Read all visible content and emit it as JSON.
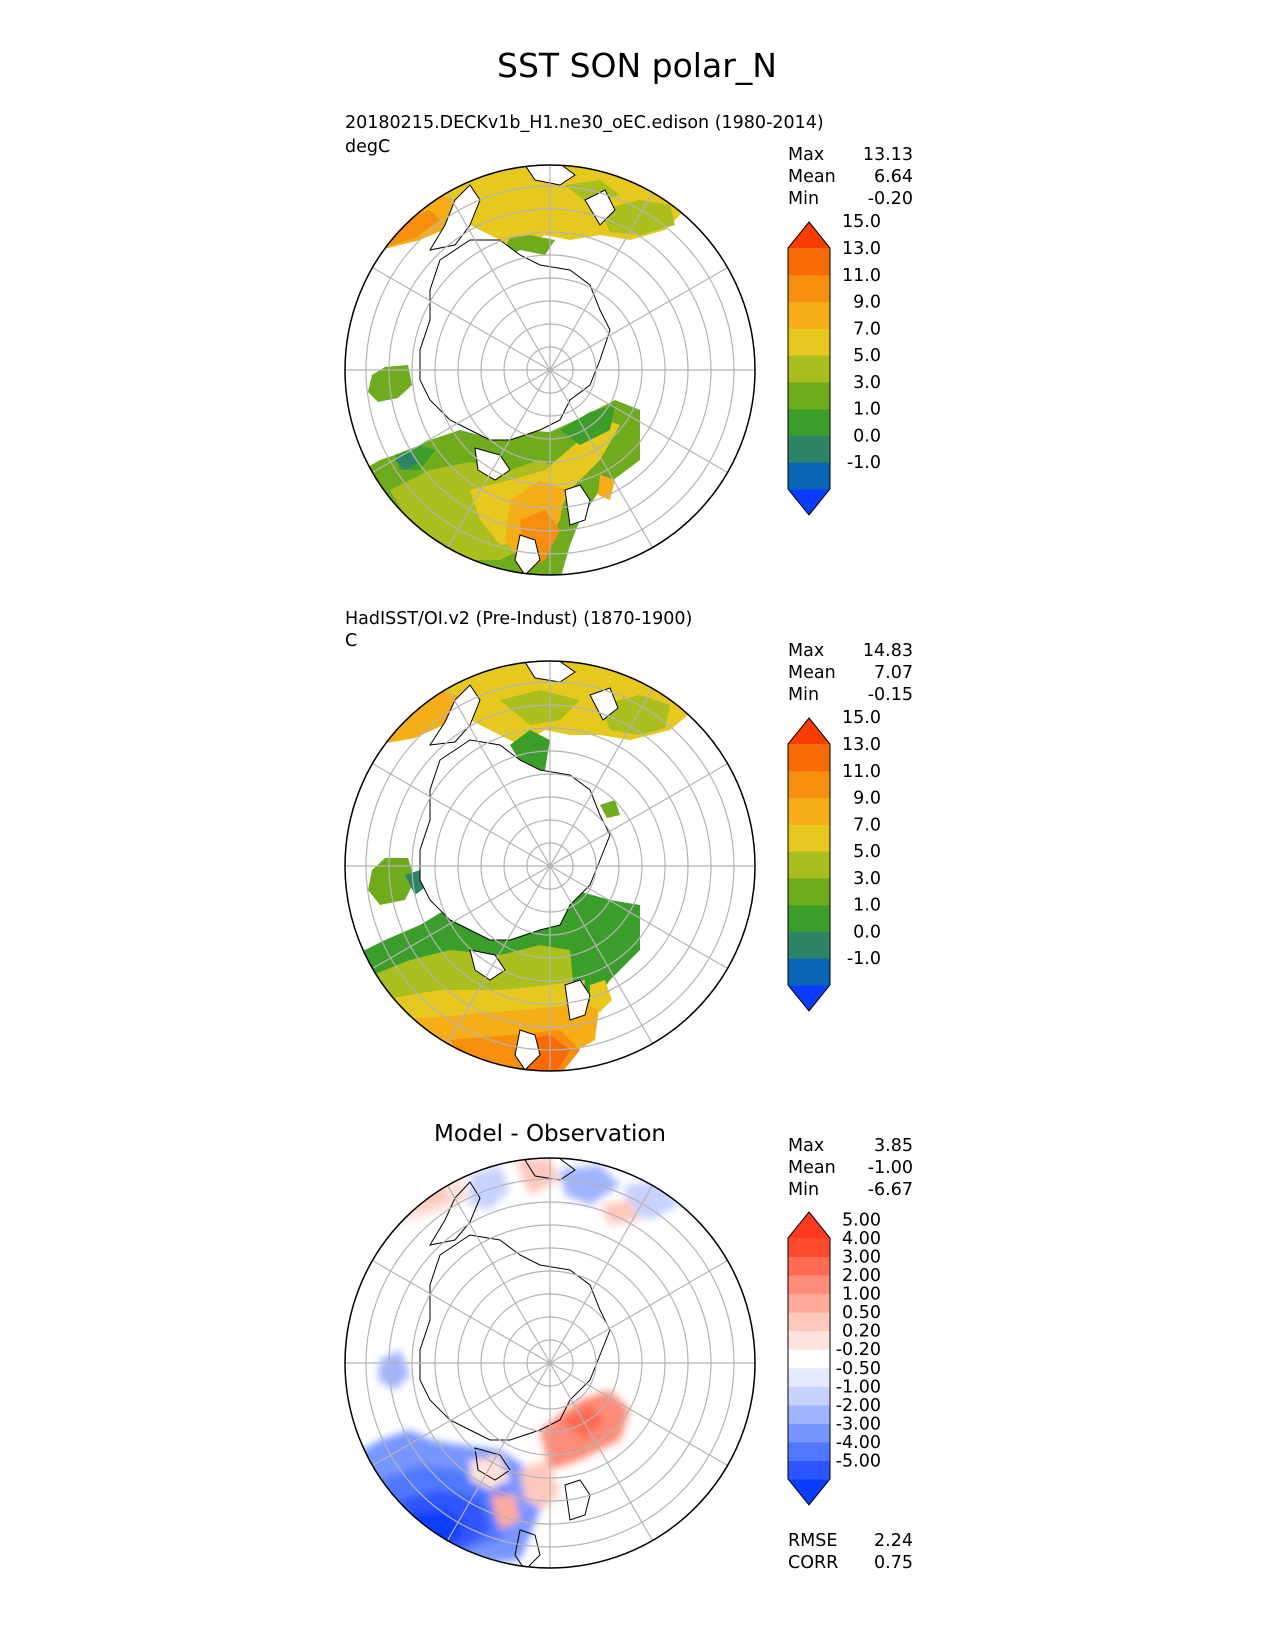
{
  "figure": {
    "title": "SST SON polar_N"
  },
  "panels": [
    {
      "id": "model",
      "title_line1": "20180215.DECKv1b_H1.ne30_oEC.edison (1980-2014)",
      "title_line2": "degC",
      "stats": [
        {
          "label": "Max",
          "value": "13.13"
        },
        {
          "label": "Mean",
          "value": "6.64"
        },
        {
          "label": "Min",
          "value": "-0.20"
        }
      ],
      "colorbar": {
        "colors": [
          "#0a3cff",
          "#0a64b4",
          "#2e8266",
          "#3c9e2a",
          "#6eac1e",
          "#aabe1e",
          "#e6c81e",
          "#f6ae18",
          "#f88e0e",
          "#f86a04",
          "#f83c04"
        ],
        "labels": [
          "-1.0",
          "0.0",
          "1.0",
          "3.0",
          "5.0",
          "7.0",
          "9.0",
          "11.0",
          "13.0",
          "15.0"
        ]
      }
    },
    {
      "id": "obs",
      "title_line1": "HadISST/OI.v2 (Pre-Indust) (1870-1900)",
      "title_line2": "C",
      "stats": [
        {
          "label": "Max",
          "value": "14.83"
        },
        {
          "label": "Mean",
          "value": "7.07"
        },
        {
          "label": "Min",
          "value": "-0.15"
        }
      ],
      "colorbar": {
        "colors": [
          "#0a3cff",
          "#0a64b4",
          "#2e8266",
          "#3c9e2a",
          "#6eac1e",
          "#aabe1e",
          "#e6c81e",
          "#f6ae18",
          "#f88e0e",
          "#f86a04",
          "#f83c04"
        ],
        "labels": [
          "-1.0",
          "0.0",
          "1.0",
          "3.0",
          "5.0",
          "7.0",
          "9.0",
          "11.0",
          "13.0",
          "15.0"
        ]
      }
    },
    {
      "id": "diff",
      "center_title": "Model - Observation",
      "stats": [
        {
          "label": "Max",
          "value": "3.85"
        },
        {
          "label": "Mean",
          "value": "-1.00"
        },
        {
          "label": "Min",
          "value": "-6.67"
        }
      ],
      "colorbar": {
        "colors": [
          "#0a3cff",
          "#2d55ff",
          "#5078ff",
          "#7896ff",
          "#a0b4ff",
          "#c8d2ff",
          "#e4eaff",
          "#ffffff",
          "#ffe2dc",
          "#ffc8bc",
          "#ffaa9a",
          "#ff8c78",
          "#ff6a52",
          "#ff4a2e",
          "#ff3a1e"
        ],
        "labels": [
          "-5.00",
          "-4.00",
          "-3.00",
          "-2.00",
          "-1.00",
          "-0.50",
          "-0.20",
          "0.20",
          "0.50",
          "1.00",
          "2.00",
          "3.00",
          "4.00",
          "5.00"
        ]
      },
      "metrics": [
        {
          "label": "RMSE",
          "value": "2.24"
        },
        {
          "label": "CORR",
          "value": "0.75"
        }
      ]
    }
  ]
}
